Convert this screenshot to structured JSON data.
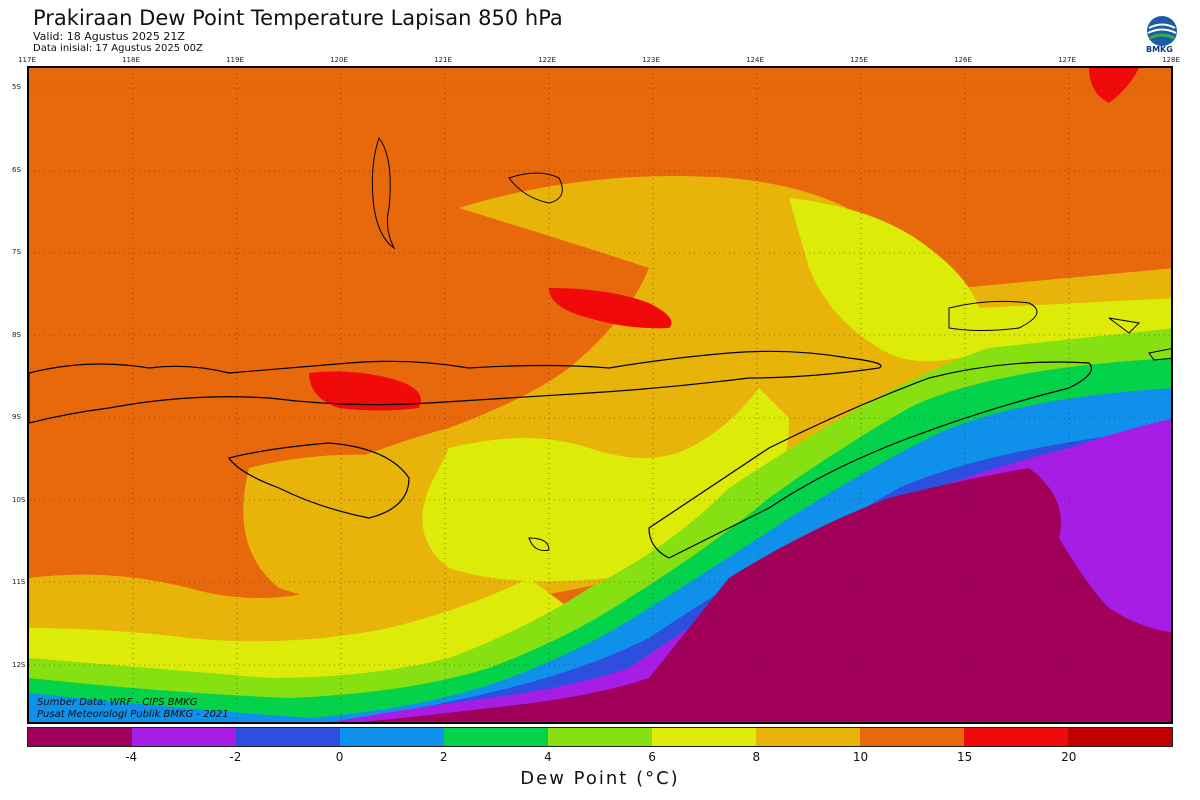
{
  "header": {
    "title": "Prakiraan Dew Point Temperature Lapisan 850 hPa",
    "valid": "Valid: 18 Agustus 2025 21Z",
    "init": "Data inisial: 17 Agustus 2025 00Z",
    "logo_text": "BMKG"
  },
  "map": {
    "lon_labels": [
      "117E",
      "118E",
      "119E",
      "120E",
      "121E",
      "122E",
      "123E",
      "124E",
      "125E",
      "126E",
      "127E",
      "128E"
    ],
    "lat_labels": [
      "5S",
      "6S",
      "7S",
      "8S",
      "9S",
      "10S",
      "11S",
      "12S"
    ]
  },
  "credits": {
    "source": "Sumber Data: WRF - CIPS BMKG",
    "org": "Pusat Meteorologi Publik BMKG - 2021"
  },
  "colorbar": {
    "colors": [
      "#a0005a",
      "#a61ee6",
      "#2d4fe0",
      "#0f90ea",
      "#04d24a",
      "#86e012",
      "#dceb08",
      "#e8b40a",
      "#e8680c",
      "#f00a0a",
      "#c00000"
    ],
    "ticks": [
      "-4",
      "-2",
      "0",
      "2",
      "4",
      "6",
      "8",
      "10",
      "15",
      "20"
    ],
    "unit_label": "Dew Point (°C)"
  }
}
